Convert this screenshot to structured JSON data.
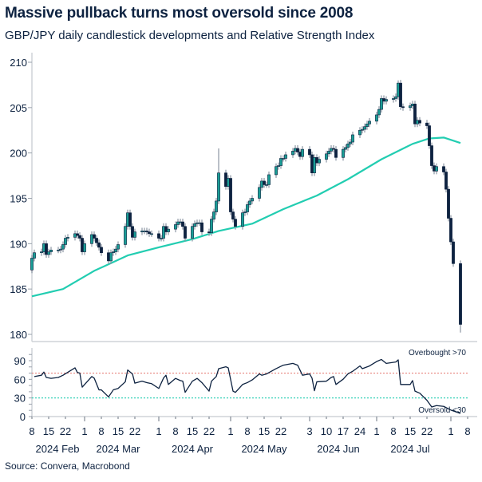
{
  "chart_data": {
    "type": "candlestick",
    "title": "Massive pullback turns most oversold since 2008",
    "subtitle": "GBP/JPY daily candlestick developments and Relative Strength Index",
    "source": "Source: Convera, Macrobond",
    "price_panel": {
      "ylim": [
        179.5,
        210.5
      ],
      "yticks": [
        180,
        185,
        190,
        195,
        200,
        205,
        210
      ],
      "first_open": 187.1,
      "dates": [
        "2024-02-08",
        "2024-02-09",
        "2024-02-12",
        "2024-02-13",
        "2024-02-14",
        "2024-02-15",
        "2024-02-16",
        "2024-02-19",
        "2024-02-20",
        "2024-02-21",
        "2024-02-22",
        "2024-02-23",
        "2024-02-26",
        "2024-02-27",
        "2024-02-28",
        "2024-02-29",
        "2024-03-01",
        "2024-03-04",
        "2024-03-05",
        "2024-03-06",
        "2024-03-07",
        "2024-03-08",
        "2024-03-11",
        "2024-03-12",
        "2024-03-13",
        "2024-03-14",
        "2024-03-15",
        "2024-03-18",
        "2024-03-19",
        "2024-03-20",
        "2024-03-21",
        "2024-03-22",
        "2024-03-25",
        "2024-03-26",
        "2024-03-27",
        "2024-03-28",
        "2024-03-29",
        "2024-04-01",
        "2024-04-02",
        "2024-04-03",
        "2024-04-04",
        "2024-04-05",
        "2024-04-08",
        "2024-04-09",
        "2024-04-10",
        "2024-04-11",
        "2024-04-12",
        "2024-04-15",
        "2024-04-16",
        "2024-04-17",
        "2024-04-18",
        "2024-04-19",
        "2024-04-22",
        "2024-04-23",
        "2024-04-24",
        "2024-04-25",
        "2024-04-26",
        "2024-04-29",
        "2024-04-30",
        "2024-05-01",
        "2024-05-02",
        "2024-05-03",
        "2024-05-06",
        "2024-05-07",
        "2024-05-08",
        "2024-05-09",
        "2024-05-10",
        "2024-05-13",
        "2024-05-14",
        "2024-05-15",
        "2024-05-16",
        "2024-05-17",
        "2024-05-20",
        "2024-05-21",
        "2024-05-22",
        "2024-05-23",
        "2024-05-24",
        "2024-05-27",
        "2024-05-28",
        "2024-05-29",
        "2024-05-30",
        "2024-05-31",
        "2024-06-03",
        "2024-06-04",
        "2024-06-05",
        "2024-06-06",
        "2024-06-07",
        "2024-06-10",
        "2024-06-11",
        "2024-06-12",
        "2024-06-13",
        "2024-06-14",
        "2024-06-17",
        "2024-06-18",
        "2024-06-19",
        "2024-06-20",
        "2024-06-21",
        "2024-06-24",
        "2024-06-25",
        "2024-06-26",
        "2024-06-27",
        "2024-06-28",
        "2024-07-01",
        "2024-07-02",
        "2024-07-03",
        "2024-07-04",
        "2024-07-05",
        "2024-07-08",
        "2024-07-09",
        "2024-07-10",
        "2024-07-11",
        "2024-07-12",
        "2024-07-15",
        "2024-07-16",
        "2024-07-17",
        "2024-07-18",
        "2024-07-19",
        "2024-07-22",
        "2024-07-23",
        "2024-07-24",
        "2024-07-25",
        "2024-07-26",
        "2024-07-29",
        "2024-07-30",
        "2024-07-31",
        "2024-08-01",
        "2024-08-02",
        "2024-08-05"
      ],
      "close": [
        188.4,
        189.0,
        189.1,
        190.0,
        188.8,
        189.1,
        189.3,
        189.3,
        189.4,
        189.9,
        190.6,
        190.7,
        191.1,
        190.9,
        190.6,
        189.1,
        190.0,
        191.0,
        190.6,
        190.1,
        189.6,
        189.0,
        188.1,
        189.0,
        189.1,
        189.4,
        189.9,
        191.9,
        193.4,
        191.9,
        190.7,
        191.3,
        191.4,
        191.4,
        191.3,
        191.1,
        191.1,
        190.6,
        190.6,
        191.9,
        191.3,
        191.6,
        192.1,
        192.4,
        192.4,
        191.9,
        190.6,
        191.9,
        192.2,
        192.3,
        192.3,
        191.3,
        191.2,
        192.7,
        193.5,
        194.7,
        197.8,
        196.3,
        197.2,
        193.5,
        192.7,
        191.9,
        193.4,
        193.5,
        194.3,
        194.7,
        195.0,
        196.2,
        196.9,
        196.5,
        196.5,
        197.6,
        198.5,
        198.6,
        199.4,
        199.4,
        199.8,
        200.2,
        200.5,
        200.1,
        199.6,
        200.4,
        199.8,
        197.8,
        199.5,
        198.9,
        199.3,
        199.9,
        200.2,
        200.5,
        200.4,
        199.5,
        200.4,
        200.6,
        201.0,
        201.2,
        202.0,
        202.5,
        202.6,
        202.9,
        203.2,
        203.5,
        204.2,
        204.8,
        206.0,
        205.7,
        205.9,
        206.0,
        206.2,
        207.7,
        205.1,
        205.0,
        205.2,
        205.4,
        203.2,
        203.6,
        203.3,
        203.0,
        200.8,
        198.6,
        198.0,
        198.5,
        197.9,
        196.0,
        192.8,
        190.2,
        187.8,
        181.1
      ],
      "notable_extremes": [
        {
          "date": "2024-04-26",
          "high": 200.5
        },
        {
          "date": "2024-07-10",
          "high": 208.0
        },
        {
          "date": "2024-08-05",
          "low": 180.2
        }
      ],
      "moving_average": {
        "dates": [
          "2024-02-08",
          "2024-02-21",
          "2024-03-05",
          "2024-03-19",
          "2024-04-01",
          "2024-04-15",
          "2024-04-26",
          "2024-05-10",
          "2024-05-23",
          "2024-06-06",
          "2024-06-19",
          "2024-07-03",
          "2024-07-16",
          "2024-07-23",
          "2024-07-29",
          "2024-08-05"
        ],
        "values": [
          184.2,
          185.0,
          187.0,
          188.7,
          189.6,
          190.5,
          191.4,
          192.2,
          193.8,
          195.3,
          197.1,
          199.3,
          201.0,
          201.6,
          201.7,
          201.1
        ]
      }
    },
    "rsi_panel": {
      "ylim": [
        0,
        100
      ],
      "yticks": [
        0,
        30,
        60,
        90
      ],
      "overbought_level": 70,
      "oversold_level": 30,
      "overbought_label": "Overbought >70",
      "oversold_label": "Oversold <30",
      "dates": [
        "2024-02-09",
        "2024-02-12",
        "2024-02-13",
        "2024-02-14",
        "2024-02-16",
        "2024-02-19",
        "2024-02-21",
        "2024-02-26",
        "2024-02-27",
        "2024-02-28",
        "2024-02-29",
        "2024-03-04",
        "2024-03-05",
        "2024-03-07",
        "2024-03-08",
        "2024-03-11",
        "2024-03-13",
        "2024-03-15",
        "2024-03-18",
        "2024-03-19",
        "2024-03-21",
        "2024-03-22",
        "2024-03-25",
        "2024-03-27",
        "2024-03-29",
        "2024-04-01",
        "2024-04-03",
        "2024-04-04",
        "2024-04-05",
        "2024-04-08",
        "2024-04-10",
        "2024-04-11",
        "2024-04-12",
        "2024-04-15",
        "2024-04-17",
        "2024-04-19",
        "2024-04-22",
        "2024-04-23",
        "2024-04-25",
        "2024-04-26",
        "2024-04-29",
        "2024-04-30",
        "2024-05-02",
        "2024-05-03",
        "2024-05-06",
        "2024-05-08",
        "2024-05-10",
        "2024-05-13",
        "2024-05-14",
        "2024-05-16",
        "2024-05-20",
        "2024-05-23",
        "2024-05-27",
        "2024-05-29",
        "2024-05-31",
        "2024-06-03",
        "2024-06-04",
        "2024-06-05",
        "2024-06-06",
        "2024-06-10",
        "2024-06-12",
        "2024-06-13",
        "2024-06-14",
        "2024-06-17",
        "2024-06-19",
        "2024-06-21",
        "2024-06-24",
        "2024-06-25",
        "2024-06-28",
        "2024-07-01",
        "2024-07-03",
        "2024-07-05",
        "2024-07-09",
        "2024-07-10",
        "2024-07-11",
        "2024-07-15",
        "2024-07-16",
        "2024-07-17",
        "2024-07-19",
        "2024-07-22",
        "2024-07-24",
        "2024-07-26",
        "2024-07-29",
        "2024-08-01",
        "2024-08-05"
      ],
      "values": [
        64.5,
        66.6,
        71.7,
        63,
        61.5,
        63,
        66.6,
        78.5,
        71,
        70,
        47.4,
        64.5,
        62,
        43,
        43,
        31.7,
        43,
        45.3,
        56,
        75,
        68.7,
        53.8,
        57,
        54.7,
        53,
        45.3,
        62.3,
        66.6,
        51.7,
        61.5,
        58,
        57,
        39,
        57,
        61.5,
        54.7,
        41,
        57,
        64.5,
        77.2,
        80.2,
        78.5,
        41,
        39,
        51.7,
        54.7,
        59,
        68.7,
        66.6,
        68.7,
        77.2,
        82.8,
        85.7,
        82.8,
        66.6,
        68.7,
        62,
        41.7,
        56,
        57,
        63,
        64.5,
        51.7,
        60.2,
        68.7,
        73,
        81.5,
        77.2,
        81.5,
        88.7,
        92,
        85.7,
        87.9,
        91.3,
        51.7,
        51.7,
        58,
        41,
        37.7,
        26.2,
        15.5,
        17.7,
        16.4,
        10.5,
        5
      ]
    },
    "x_axis": {
      "range": [
        "2024-02-08",
        "2024-08-08"
      ],
      "day_ticks": [
        {
          "date": "2024-02-08",
          "label": "8"
        },
        {
          "date": "2024-02-15",
          "label": "15"
        },
        {
          "date": "2024-02-22",
          "label": "22"
        },
        {
          "date": "2024-03-01",
          "label": "1"
        },
        {
          "date": "2024-03-08",
          "label": "8"
        },
        {
          "date": "2024-03-15",
          "label": "15"
        },
        {
          "date": "2024-03-22",
          "label": "22"
        },
        {
          "date": "2024-04-01",
          "label": "1"
        },
        {
          "date": "2024-04-08",
          "label": "8"
        },
        {
          "date": "2024-04-15",
          "label": "15"
        },
        {
          "date": "2024-04-22",
          "label": "22"
        },
        {
          "date": "2024-05-01",
          "label": "1"
        },
        {
          "date": "2024-05-08",
          "label": "8"
        },
        {
          "date": "2024-05-15",
          "label": "15"
        },
        {
          "date": "2024-05-22",
          "label": "22"
        },
        {
          "date": "2024-06-03",
          "label": "3"
        },
        {
          "date": "2024-06-10",
          "label": "10"
        },
        {
          "date": "2024-06-17",
          "label": "17"
        },
        {
          "date": "2024-06-24",
          "label": "24"
        },
        {
          "date": "2024-07-01",
          "label": "1"
        },
        {
          "date": "2024-07-08",
          "label": "8"
        },
        {
          "date": "2024-07-15",
          "label": "15"
        },
        {
          "date": "2024-07-22",
          "label": "22"
        },
        {
          "date": "2024-08-01",
          "label": "1"
        },
        {
          "date": "2024-08-08",
          "label": "8"
        }
      ],
      "month_labels": [
        {
          "date": "2024-02-15",
          "label": "2024 Feb"
        },
        {
          "date": "2024-03-15",
          "label": "2024 Mar"
        },
        {
          "date": "2024-04-15",
          "label": "2024 Apr"
        },
        {
          "date": "2024-05-15",
          "label": "2024 May"
        },
        {
          "date": "2024-06-15",
          "label": "2024 Jun"
        },
        {
          "date": "2024-07-15",
          "label": "2024 Jul"
        }
      ]
    },
    "colors": {
      "up": "#1a9e96",
      "down": "#0d2240",
      "wick": "#8c96a3",
      "moving_average": "#22cdb1",
      "rsi_line": "#0d2240",
      "overbought": "#e8827c",
      "oversold": "#22cdb1",
      "axis": "#cfd3d8",
      "text": "#0d2240"
    }
  }
}
